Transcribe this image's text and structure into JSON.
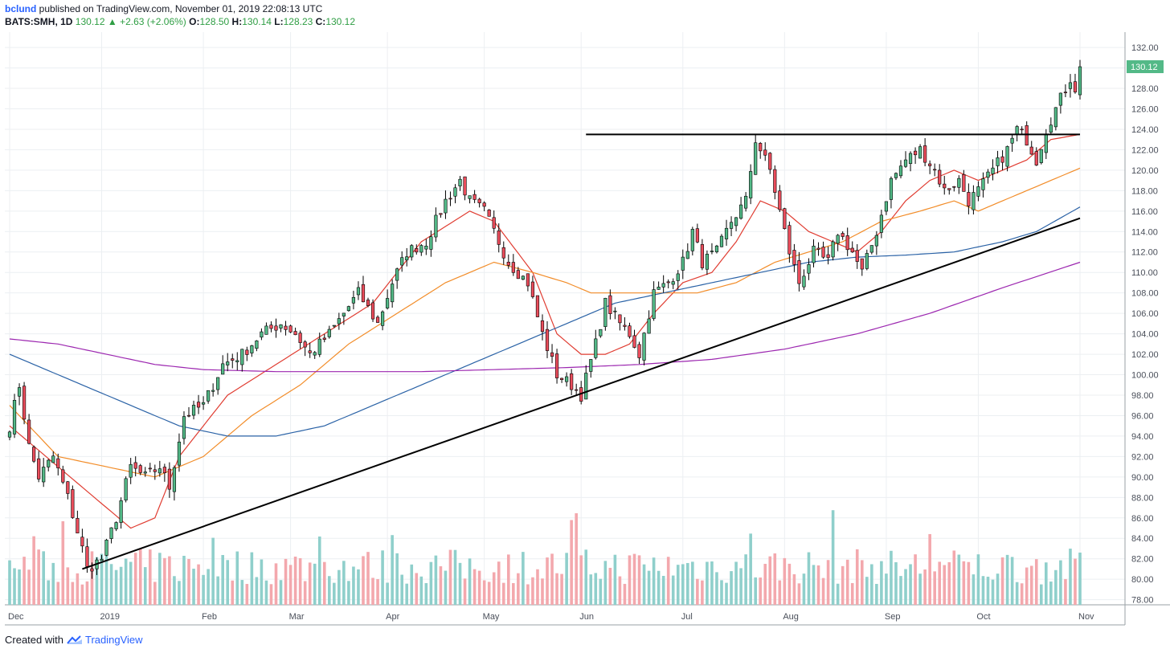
{
  "header": {
    "author": "bclund",
    "published": "published on TradingView.com, November 01, 2019 22:08:13 UTC"
  },
  "ohlc": {
    "symbol": "BATS:SMH, 1D",
    "last": "130.12",
    "arrow": "▲",
    "change": "+2.63 (+2.06%)",
    "o_label": "O:",
    "o_val": "128.50",
    "h_label": "H:",
    "h_val": "130.14",
    "l_label": "L:",
    "l_val": "128.23",
    "c_label": "C:",
    "c_val": "130.12"
  },
  "footer": {
    "created": "Created with",
    "brand": "TradingView",
    "logo_icon": "tradingview-logo-icon"
  },
  "colors": {
    "up": "#53b987",
    "down": "#eb4d5c",
    "vol_up": "#8fcfcb",
    "vol_down": "#f3a8ad",
    "ma_red": "#e03c31",
    "ma_orange": "#f28c28",
    "ma_blue": "#2a62a6",
    "ma_purple": "#9c27b0",
    "grid": "#eceff2",
    "price_tag": "#53b987"
  },
  "chart_data": {
    "type": "candlestick",
    "y_axis_ticks": [
      "132.00",
      "130.00",
      "128.00",
      "126.00",
      "124.00",
      "122.00",
      "120.00",
      "118.00",
      "116.00",
      "114.00",
      "112.00",
      "110.00",
      "108.00",
      "106.00",
      "104.00",
      "102.00",
      "100.00",
      "98.00",
      "96.00",
      "94.00",
      "92.00",
      "90.00",
      "88.00",
      "86.00",
      "84.00",
      "82.00",
      "80.00",
      "78.00"
    ],
    "ylim": [
      77.5,
      133.5
    ],
    "last_price_tag": "130.12",
    "x_axis_labels": [
      "Dec",
      "2019",
      "Feb",
      "Mar",
      "Apr",
      "May",
      "Jun",
      "Jul",
      "Aug",
      "Sep",
      "Oct",
      "Nov"
    ],
    "label_positions": [
      0,
      19,
      40,
      58,
      78,
      98,
      118,
      139,
      160,
      181,
      200,
      221
    ],
    "n_bars": 222,
    "anchors": [
      [
        0,
        95
      ],
      [
        2,
        99
      ],
      [
        4,
        93
      ],
      [
        6,
        90
      ],
      [
        9,
        92
      ],
      [
        12,
        88
      ],
      [
        15,
        83
      ],
      [
        16,
        81
      ],
      [
        19,
        82
      ],
      [
        22,
        86
      ],
      [
        25,
        91
      ],
      [
        28,
        90
      ],
      [
        31,
        91
      ],
      [
        33,
        89
      ],
      [
        36,
        96
      ],
      [
        40,
        97
      ],
      [
        44,
        101
      ],
      [
        48,
        102
      ],
      [
        52,
        104
      ],
      [
        56,
        105
      ],
      [
        59,
        104
      ],
      [
        62,
        102
      ],
      [
        66,
        104
      ],
      [
        69,
        106
      ],
      [
        72,
        108
      ],
      [
        76,
        105
      ],
      [
        79,
        109
      ],
      [
        82,
        112
      ],
      [
        86,
        113
      ],
      [
        90,
        117
      ],
      [
        93,
        119
      ],
      [
        95,
        117
      ],
      [
        98,
        116
      ],
      [
        101,
        113
      ],
      [
        103,
        111
      ],
      [
        107,
        109
      ],
      [
        110,
        104
      ],
      [
        113,
        100
      ],
      [
        116,
        99
      ],
      [
        118,
        98
      ],
      [
        121,
        103
      ],
      [
        123,
        107
      ],
      [
        126,
        105
      ],
      [
        128,
        104
      ],
      [
        130,
        102
      ],
      [
        133,
        108
      ],
      [
        136,
        109
      ],
      [
        139,
        111
      ],
      [
        141,
        114
      ],
      [
        143,
        111
      ],
      [
        146,
        112
      ],
      [
        149,
        115
      ],
      [
        152,
        117
      ],
      [
        153,
        120
      ],
      [
        154,
        123
      ],
      [
        157,
        120
      ],
      [
        159,
        116
      ],
      [
        161,
        112
      ],
      [
        163,
        109
      ],
      [
        166,
        112
      ],
      [
        169,
        111
      ],
      [
        171,
        114
      ],
      [
        174,
        112
      ],
      [
        176,
        110
      ],
      [
        179,
        114
      ],
      [
        182,
        119
      ],
      [
        185,
        121
      ],
      [
        188,
        122
      ],
      [
        191,
        120
      ],
      [
        193,
        118
      ],
      [
        196,
        119
      ],
      [
        198,
        117
      ],
      [
        200,
        118
      ],
      [
        203,
        120
      ],
      [
        206,
        122
      ],
      [
        208,
        124
      ],
      [
        210,
        123
      ],
      [
        212,
        121
      ],
      [
        214,
        124
      ],
      [
        216,
        126
      ],
      [
        218,
        128
      ],
      [
        219,
        129
      ],
      [
        220,
        128
      ],
      [
        221,
        130.12
      ]
    ],
    "volume_axis_note": "volume bars on lower overlay, no values printed",
    "moving_averages": [
      {
        "color": "ma_red",
        "anchors": [
          [
            0,
            95
          ],
          [
            15,
            89
          ],
          [
            25,
            85
          ],
          [
            30,
            86
          ],
          [
            35,
            92
          ],
          [
            45,
            98
          ],
          [
            55,
            101
          ],
          [
            65,
            104
          ],
          [
            75,
            107
          ],
          [
            85,
            113
          ],
          [
            95,
            116
          ],
          [
            100,
            115
          ],
          [
            108,
            110
          ],
          [
            113,
            104
          ],
          [
            118,
            102
          ],
          [
            123,
            102
          ],
          [
            128,
            103
          ],
          [
            133,
            106
          ],
          [
            139,
            109
          ],
          [
            145,
            110
          ],
          [
            150,
            113
          ],
          [
            155,
            117
          ],
          [
            160,
            116
          ],
          [
            165,
            114
          ],
          [
            170,
            113
          ],
          [
            175,
            112
          ],
          [
            180,
            114
          ],
          [
            185,
            117
          ],
          [
            190,
            119
          ],
          [
            195,
            120
          ],
          [
            200,
            119
          ],
          [
            205,
            120
          ],
          [
            210,
            121
          ],
          [
            215,
            123
          ],
          [
            221,
            123.5
          ]
        ]
      },
      {
        "color": "ma_orange",
        "anchors": [
          [
            0,
            97
          ],
          [
            10,
            92
          ],
          [
            20,
            91
          ],
          [
            30,
            90
          ],
          [
            40,
            92
          ],
          [
            50,
            96
          ],
          [
            60,
            99
          ],
          [
            70,
            103
          ],
          [
            80,
            106
          ],
          [
            90,
            109
          ],
          [
            100,
            111
          ],
          [
            108,
            110
          ],
          [
            115,
            109
          ],
          [
            120,
            108
          ],
          [
            128,
            108
          ],
          [
            135,
            108
          ],
          [
            142,
            108
          ],
          [
            150,
            109
          ],
          [
            158,
            111
          ],
          [
            165,
            112
          ],
          [
            172,
            113
          ],
          [
            180,
            115
          ],
          [
            188,
            116
          ],
          [
            195,
            117
          ],
          [
            200,
            116
          ],
          [
            205,
            117
          ],
          [
            210,
            118
          ],
          [
            215,
            119
          ],
          [
            221,
            120.2
          ]
        ]
      },
      {
        "color": "ma_blue",
        "anchors": [
          [
            0,
            102
          ],
          [
            15,
            99
          ],
          [
            25,
            97
          ],
          [
            35,
            95
          ],
          [
            45,
            94
          ],
          [
            55,
            94
          ],
          [
            65,
            95
          ],
          [
            75,
            97
          ],
          [
            85,
            99
          ],
          [
            95,
            101
          ],
          [
            105,
            103
          ],
          [
            115,
            105
          ],
          [
            125,
            107
          ],
          [
            135,
            108
          ],
          [
            145,
            109
          ],
          [
            155,
            110
          ],
          [
            165,
            111
          ],
          [
            175,
            111.5
          ],
          [
            185,
            111.7
          ],
          [
            195,
            112
          ],
          [
            205,
            113
          ],
          [
            212,
            114
          ],
          [
            221,
            116.4
          ]
        ]
      },
      {
        "color": "ma_purple",
        "anchors": [
          [
            0,
            103.5
          ],
          [
            10,
            103
          ],
          [
            20,
            102
          ],
          [
            30,
            101
          ],
          [
            40,
            100.5
          ],
          [
            55,
            100.3
          ],
          [
            70,
            100.3
          ],
          [
            85,
            100.3
          ],
          [
            100,
            100.5
          ],
          [
            115,
            100.7
          ],
          [
            130,
            101
          ],
          [
            145,
            101.5
          ],
          [
            160,
            102.5
          ],
          [
            175,
            104
          ],
          [
            190,
            106
          ],
          [
            205,
            108.5
          ],
          [
            221,
            111
          ]
        ]
      }
    ],
    "trendlines": [
      {
        "name": "resistance",
        "from": [
          119,
          123.5
        ],
        "to": [
          221,
          123.5
        ]
      },
      {
        "name": "support",
        "from": [
          15,
          81
        ],
        "to": [
          221,
          115.3
        ]
      }
    ]
  }
}
